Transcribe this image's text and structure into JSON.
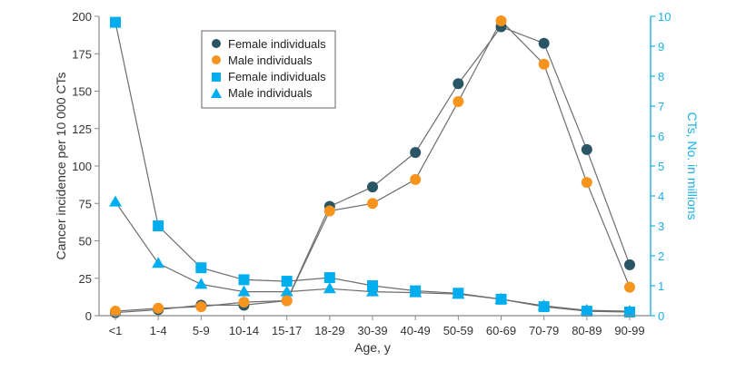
{
  "chart_data": {
    "type": "line",
    "title": "",
    "xlabel": "Age, y",
    "ylabel": "Cancer incidence per 10 000 CTs",
    "y2label": "CTs, No. in millions",
    "categories": [
      "<1",
      "1-4",
      "5-9",
      "10-14",
      "15-17",
      "18-29",
      "30-39",
      "40-49",
      "50-59",
      "60-69",
      "70-79",
      "80-89",
      "90-99"
    ],
    "ylim": [
      0,
      200
    ],
    "yticks": [
      0,
      25,
      50,
      75,
      100,
      125,
      150,
      175,
      200
    ],
    "y2lim": [
      0,
      10
    ],
    "y2ticks": [
      0,
      1,
      2,
      3,
      4,
      5,
      6,
      7,
      8,
      9,
      10
    ],
    "grid": false,
    "legend_position": "top-left-center",
    "series": [
      {
        "name": "Female individuals",
        "axis": "left",
        "marker": "circle",
        "color": "#2a5565",
        "values": [
          2,
          4,
          7,
          7,
          10,
          73,
          86,
          109,
          155,
          193,
          182,
          111,
          34
        ]
      },
      {
        "name": "Male individuals",
        "axis": "left",
        "marker": "circle",
        "color": "#f7941d",
        "values": [
          3,
          5,
          6,
          9,
          10,
          70,
          75,
          91,
          143,
          197,
          168,
          89,
          19
        ]
      },
      {
        "name": "Female individuals",
        "axis": "right",
        "marker": "square",
        "color": "#00aeef",
        "values": [
          9.8,
          3.0,
          1.6,
          1.2,
          1.15,
          1.27,
          1.0,
          0.83,
          0.75,
          0.55,
          0.3,
          0.15,
          0.12
        ]
      },
      {
        "name": "Male individuals",
        "axis": "right",
        "marker": "triangle",
        "color": "#00aeef",
        "values": [
          3.8,
          1.75,
          1.05,
          0.8,
          0.8,
          0.9,
          0.8,
          0.77,
          0.72,
          0.55,
          0.33,
          0.18,
          0.15
        ]
      }
    ],
    "colors": {
      "axis_left": "#888888",
      "axis_right": "#1ab0e8",
      "line": "#6d6d6d"
    }
  }
}
